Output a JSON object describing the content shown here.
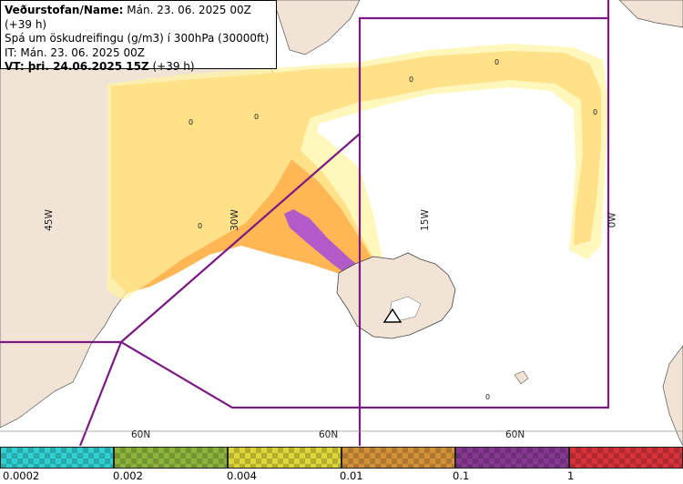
{
  "header": {
    "line1_label": "Veðurstofan/Name:",
    "line1_value": "Mán. 23. 06. 2025 00Z (+39 h)",
    "line2": "Spá um öskudreifingu (g/m3) í 300hPa (30000ft)",
    "line3": "IT: Mán. 23. 06. 2025 00Z",
    "line4_label": "VT: þri. 24.06.2025 15Z",
    "line4_value": "(+39 h)"
  },
  "map": {
    "longitude_labels": [
      "45W",
      "30W",
      "15W",
      "0W"
    ],
    "latitude_labels": [
      "60N",
      "60N",
      "60N"
    ],
    "contour_labels": [
      "0",
      "0",
      "0",
      "0",
      "0",
      "0",
      "0"
    ],
    "source_marker": "volcano-triangle-icon",
    "colors": {
      "land": "#f1e4d6",
      "ocean": "#ffffff",
      "boundary": "#7a1a82",
      "ash_low": "#ffb24c",
      "ash_high": "#b25ac8"
    }
  },
  "legend": {
    "ticks": [
      "0.0002",
      "0.002",
      "0.004",
      "0.01",
      "0.1",
      "1"
    ],
    "colors": [
      "#31cfd1",
      "#8db43d",
      "#dcd63a",
      "#d3913a",
      "#863892",
      "#d8323a"
    ]
  }
}
